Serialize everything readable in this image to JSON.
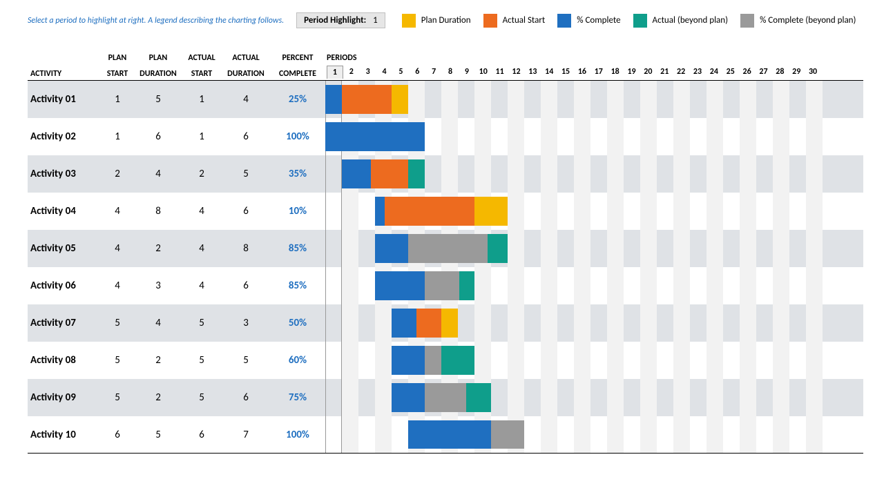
{
  "hint_text": "Select a period to highlight at right.  A legend describing the charting follows.",
  "period_highlight": {
    "label": "Period Highlight:",
    "value": "1"
  },
  "legend": [
    {
      "label": "Plan Duration",
      "color": "#f5b800"
    },
    {
      "label": "Actual Start",
      "color": "#ed6b1f"
    },
    {
      "label": "% Complete",
      "color": "#1f6fc0"
    },
    {
      "label": "Actual (beyond plan)",
      "color": "#0f9e8b"
    },
    {
      "label": "% Complete (beyond plan)",
      "color": "#9a9a9a"
    }
  ],
  "columns": {
    "activity": "ACTIVITY",
    "plan_start_1": "PLAN",
    "plan_start_2": "START",
    "plan_dur_1": "PLAN",
    "plan_dur_2": "DURATION",
    "actual_start_1": "ACTUAL",
    "actual_start_2": "START",
    "actual_dur_1": "ACTUAL",
    "actual_dur_2": "DURATION",
    "pct_1": "PERCENT",
    "pct_2": "COMPLETE",
    "periods": "PERIODS"
  },
  "chart": {
    "periods": 30,
    "highlight_period": 1,
    "alt_stripe_color": "#f2f2f2",
    "row_shade_color": "#dfe2e6",
    "percent_text_color": "#1f6fc0",
    "colors": {
      "plan": "#f5b800",
      "actual": "#ed6b1f",
      "complete": "#1f6fc0",
      "actual_beyond": "#0f9e8b",
      "complete_beyond": "#9a9a9a"
    },
    "rows": [
      {
        "name": "Activity 01",
        "plan_start": 1,
        "plan_dur": 5,
        "actual_start": 1,
        "actual_dur": 4,
        "pct": "25%",
        "pct_num": 25
      },
      {
        "name": "Activity 02",
        "plan_start": 1,
        "plan_dur": 6,
        "actual_start": 1,
        "actual_dur": 6,
        "pct": "100%",
        "pct_num": 100
      },
      {
        "name": "Activity 03",
        "plan_start": 2,
        "plan_dur": 4,
        "actual_start": 2,
        "actual_dur": 5,
        "pct": "35%",
        "pct_num": 35
      },
      {
        "name": "Activity 04",
        "plan_start": 4,
        "plan_dur": 8,
        "actual_start": 4,
        "actual_dur": 6,
        "pct": "10%",
        "pct_num": 10
      },
      {
        "name": "Activity 05",
        "plan_start": 4,
        "plan_dur": 2,
        "actual_start": 4,
        "actual_dur": 8,
        "pct": "85%",
        "pct_num": 85
      },
      {
        "name": "Activity 06",
        "plan_start": 4,
        "plan_dur": 3,
        "actual_start": 4,
        "actual_dur": 6,
        "pct": "85%",
        "pct_num": 85
      },
      {
        "name": "Activity 07",
        "plan_start": 5,
        "plan_dur": 4,
        "actual_start": 5,
        "actual_dur": 3,
        "pct": "50%",
        "pct_num": 50
      },
      {
        "name": "Activity 08",
        "plan_start": 5,
        "plan_dur": 2,
        "actual_start": 5,
        "actual_dur": 5,
        "pct": "60%",
        "pct_num": 60
      },
      {
        "name": "Activity 09",
        "plan_start": 5,
        "plan_dur": 2,
        "actual_start": 5,
        "actual_dur": 6,
        "pct": "75%",
        "pct_num": 75
      },
      {
        "name": "Activity 10",
        "plan_start": 6,
        "plan_dur": 5,
        "actual_start": 6,
        "actual_dur": 7,
        "pct": "100%",
        "pct_num": 100
      }
    ]
  }
}
